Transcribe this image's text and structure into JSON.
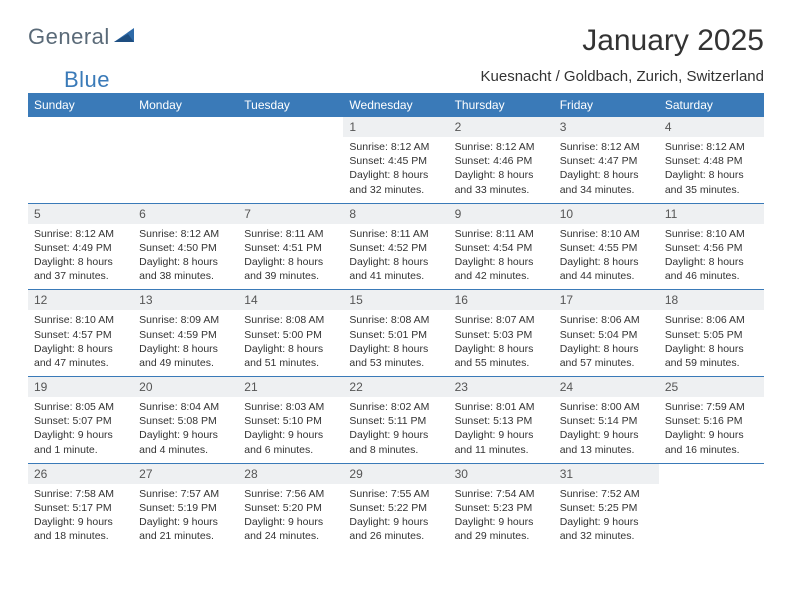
{
  "logo": {
    "word1": "General",
    "word2": "Blue"
  },
  "title": "January 2025",
  "location": "Kuesnacht / Goldbach, Zurich, Switzerland",
  "colors": {
    "header_bg": "#3a7ab8",
    "header_fg": "#ffffff",
    "daynum_bg": "#eef0f2",
    "row_border": "#3a7ab8",
    "logo_gray": "#5a6a78",
    "logo_blue": "#3a7ab8"
  },
  "day_headers": [
    "Sunday",
    "Monday",
    "Tuesday",
    "Wednesday",
    "Thursday",
    "Friday",
    "Saturday"
  ],
  "weeks": [
    [
      {
        "n": "",
        "empty": true
      },
      {
        "n": "",
        "empty": true
      },
      {
        "n": "",
        "empty": true
      },
      {
        "n": "1",
        "sr": "8:12 AM",
        "ss": "4:45 PM",
        "dl": "8 hours and 32 minutes."
      },
      {
        "n": "2",
        "sr": "8:12 AM",
        "ss": "4:46 PM",
        "dl": "8 hours and 33 minutes."
      },
      {
        "n": "3",
        "sr": "8:12 AM",
        "ss": "4:47 PM",
        "dl": "8 hours and 34 minutes."
      },
      {
        "n": "4",
        "sr": "8:12 AM",
        "ss": "4:48 PM",
        "dl": "8 hours and 35 minutes."
      }
    ],
    [
      {
        "n": "5",
        "sr": "8:12 AM",
        "ss": "4:49 PM",
        "dl": "8 hours and 37 minutes."
      },
      {
        "n": "6",
        "sr": "8:12 AM",
        "ss": "4:50 PM",
        "dl": "8 hours and 38 minutes."
      },
      {
        "n": "7",
        "sr": "8:11 AM",
        "ss": "4:51 PM",
        "dl": "8 hours and 39 minutes."
      },
      {
        "n": "8",
        "sr": "8:11 AM",
        "ss": "4:52 PM",
        "dl": "8 hours and 41 minutes."
      },
      {
        "n": "9",
        "sr": "8:11 AM",
        "ss": "4:54 PM",
        "dl": "8 hours and 42 minutes."
      },
      {
        "n": "10",
        "sr": "8:10 AM",
        "ss": "4:55 PM",
        "dl": "8 hours and 44 minutes."
      },
      {
        "n": "11",
        "sr": "8:10 AM",
        "ss": "4:56 PM",
        "dl": "8 hours and 46 minutes."
      }
    ],
    [
      {
        "n": "12",
        "sr": "8:10 AM",
        "ss": "4:57 PM",
        "dl": "8 hours and 47 minutes."
      },
      {
        "n": "13",
        "sr": "8:09 AM",
        "ss": "4:59 PM",
        "dl": "8 hours and 49 minutes."
      },
      {
        "n": "14",
        "sr": "8:08 AM",
        "ss": "5:00 PM",
        "dl": "8 hours and 51 minutes."
      },
      {
        "n": "15",
        "sr": "8:08 AM",
        "ss": "5:01 PM",
        "dl": "8 hours and 53 minutes."
      },
      {
        "n": "16",
        "sr": "8:07 AM",
        "ss": "5:03 PM",
        "dl": "8 hours and 55 minutes."
      },
      {
        "n": "17",
        "sr": "8:06 AM",
        "ss": "5:04 PM",
        "dl": "8 hours and 57 minutes."
      },
      {
        "n": "18",
        "sr": "8:06 AM",
        "ss": "5:05 PM",
        "dl": "8 hours and 59 minutes."
      }
    ],
    [
      {
        "n": "19",
        "sr": "8:05 AM",
        "ss": "5:07 PM",
        "dl": "9 hours and 1 minute."
      },
      {
        "n": "20",
        "sr": "8:04 AM",
        "ss": "5:08 PM",
        "dl": "9 hours and 4 minutes."
      },
      {
        "n": "21",
        "sr": "8:03 AM",
        "ss": "5:10 PM",
        "dl": "9 hours and 6 minutes."
      },
      {
        "n": "22",
        "sr": "8:02 AM",
        "ss": "5:11 PM",
        "dl": "9 hours and 8 minutes."
      },
      {
        "n": "23",
        "sr": "8:01 AM",
        "ss": "5:13 PM",
        "dl": "9 hours and 11 minutes."
      },
      {
        "n": "24",
        "sr": "8:00 AM",
        "ss": "5:14 PM",
        "dl": "9 hours and 13 minutes."
      },
      {
        "n": "25",
        "sr": "7:59 AM",
        "ss": "5:16 PM",
        "dl": "9 hours and 16 minutes."
      }
    ],
    [
      {
        "n": "26",
        "sr": "7:58 AM",
        "ss": "5:17 PM",
        "dl": "9 hours and 18 minutes."
      },
      {
        "n": "27",
        "sr": "7:57 AM",
        "ss": "5:19 PM",
        "dl": "9 hours and 21 minutes."
      },
      {
        "n": "28",
        "sr": "7:56 AM",
        "ss": "5:20 PM",
        "dl": "9 hours and 24 minutes."
      },
      {
        "n": "29",
        "sr": "7:55 AM",
        "ss": "5:22 PM",
        "dl": "9 hours and 26 minutes."
      },
      {
        "n": "30",
        "sr": "7:54 AM",
        "ss": "5:23 PM",
        "dl": "9 hours and 29 minutes."
      },
      {
        "n": "31",
        "sr": "7:52 AM",
        "ss": "5:25 PM",
        "dl": "9 hours and 32 minutes."
      },
      {
        "n": "",
        "empty": true
      }
    ]
  ],
  "labels": {
    "sunrise": "Sunrise:",
    "sunset": "Sunset:",
    "daylight": "Daylight:"
  }
}
